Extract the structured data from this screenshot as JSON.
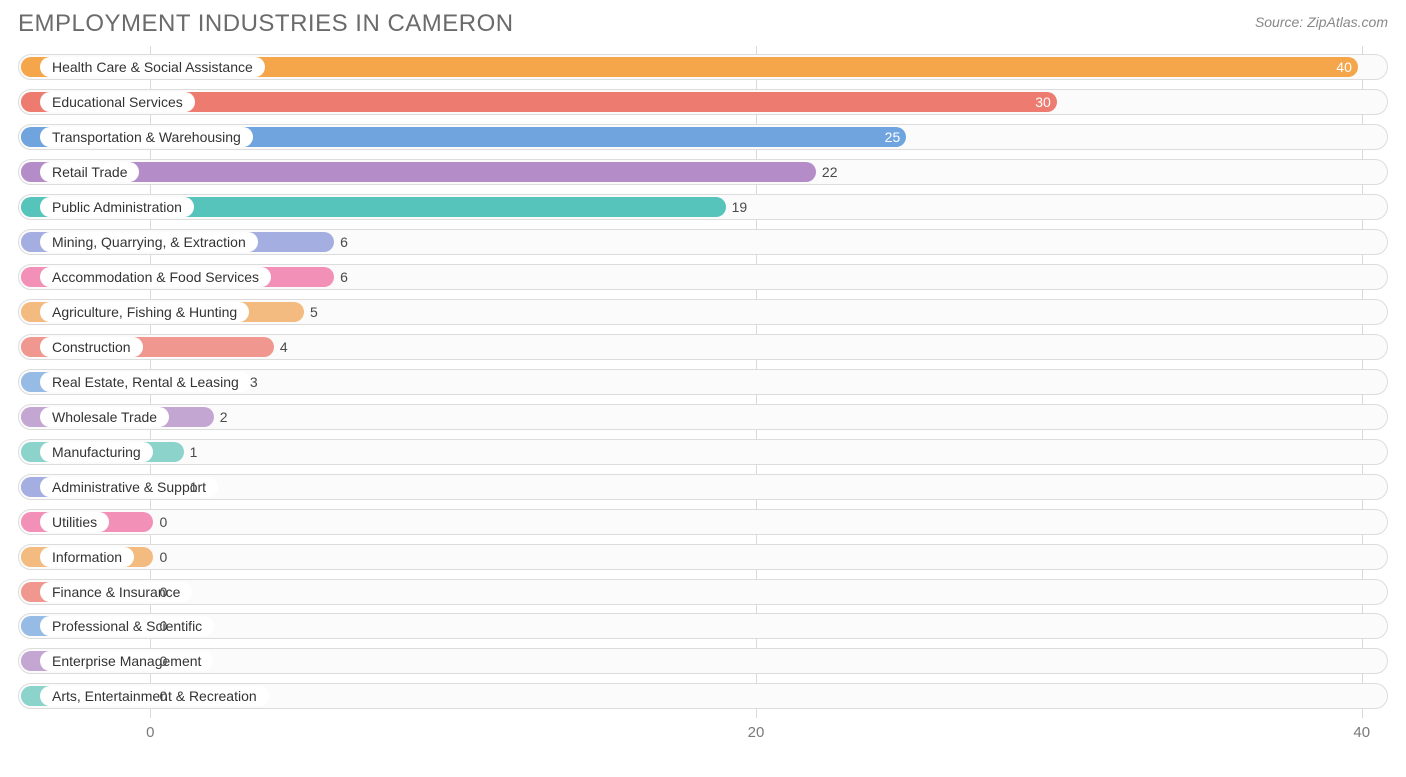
{
  "header": {
    "title": "EMPLOYMENT INDUSTRIES IN CAMERON",
    "source": "Source: ZipAtlas.com"
  },
  "chart": {
    "type": "bar-horizontal",
    "x_axis": {
      "min": -4.5,
      "max": 41,
      "ticks": [
        0,
        20,
        40
      ],
      "tick_labels": [
        "0",
        "20",
        "40"
      ]
    },
    "background_color": "#ffffff",
    "track_bg": "#fbfbfb",
    "track_border": "#dcdcdc",
    "grid_color": "#d9d9d9",
    "label_fontsize": 14,
    "tick_fontsize": 15,
    "rows": [
      {
        "label": "Health Care & Social Assistance",
        "value": 40,
        "color": "#f5a54a",
        "value_on_bar": true
      },
      {
        "label": "Educational Services",
        "value": 30,
        "color": "#ee7b6f",
        "value_on_bar": true
      },
      {
        "label": "Transportation & Warehousing",
        "value": 25,
        "color": "#6fa4de",
        "value_on_bar": true
      },
      {
        "label": "Retail Trade",
        "value": 22,
        "color": "#b48dc8",
        "value_on_bar": false
      },
      {
        "label": "Public Administration",
        "value": 19,
        "color": "#57c4bb",
        "value_on_bar": false
      },
      {
        "label": "Mining, Quarrying, & Extraction",
        "value": 6,
        "color": "#a5aee0",
        "value_on_bar": false
      },
      {
        "label": "Accommodation & Food Services",
        "value": 6,
        "color": "#f290b8",
        "value_on_bar": false
      },
      {
        "label": "Agriculture, Fishing & Hunting",
        "value": 5,
        "color": "#f3bb7f",
        "value_on_bar": false
      },
      {
        "label": "Construction",
        "value": 4,
        "color": "#f0988f",
        "value_on_bar": false
      },
      {
        "label": "Real Estate, Rental & Leasing",
        "value": 3,
        "color": "#96bbe5",
        "value_on_bar": false
      },
      {
        "label": "Wholesale Trade",
        "value": 2,
        "color": "#c4a6d3",
        "value_on_bar": false
      },
      {
        "label": "Manufacturing",
        "value": 1,
        "color": "#8cd4cb",
        "value_on_bar": false
      },
      {
        "label": "Administrative & Support",
        "value": 1,
        "color": "#a5aee0",
        "value_on_bar": false
      },
      {
        "label": "Utilities",
        "value": 0,
        "color": "#f290b8",
        "value_on_bar": false
      },
      {
        "label": "Information",
        "value": 0,
        "color": "#f3bb7f",
        "value_on_bar": false
      },
      {
        "label": "Finance & Insurance",
        "value": 0,
        "color": "#f0988f",
        "value_on_bar": false
      },
      {
        "label": "Professional & Scientific",
        "value": 0,
        "color": "#96bbe5",
        "value_on_bar": false
      },
      {
        "label": "Enterprise Management",
        "value": 0,
        "color": "#c4a6d3",
        "value_on_bar": false
      },
      {
        "label": "Arts, Entertainment & Recreation",
        "value": 0,
        "color": "#8cd4cb",
        "value_on_bar": false
      }
    ]
  }
}
